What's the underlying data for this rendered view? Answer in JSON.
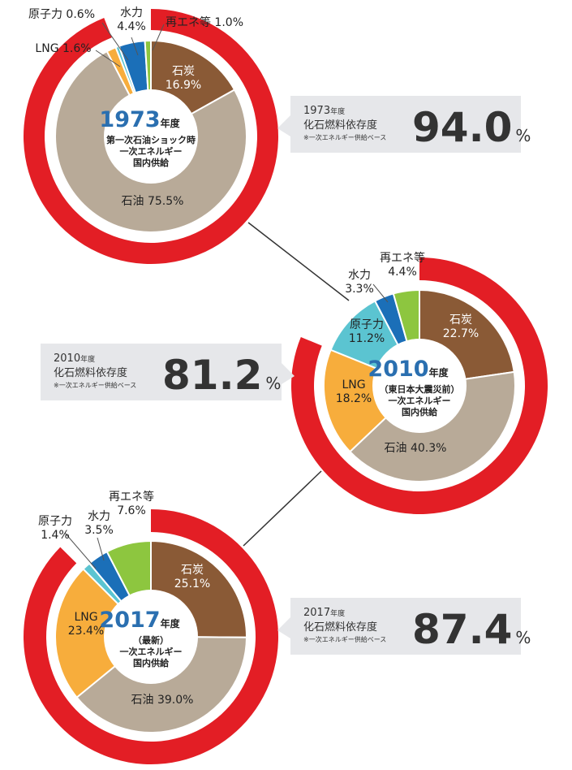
{
  "colors": {
    "ring": "#e31e25",
    "callout_bg": "#e6e7ea",
    "year_text": "#2a6fb0",
    "connector": "#333333",
    "categories": {
      "coal": "#8a5a36",
      "oil": "#b8aa98",
      "lng": "#f7ad3c",
      "nuclear": "#5bc4d1",
      "hydro": "#1b6fb8",
      "renewable": "#8dc63f"
    }
  },
  "charts": [
    {
      "year": "1973",
      "nendo": "年度",
      "center_lines": [
        "第一次石油ショック時",
        "一次エネルギー",
        "国内供給"
      ],
      "callout": {
        "year": "1973",
        "year_suffix": "年度",
        "label": "化石燃料依存度",
        "note": "※一次エネルギー供給ベース",
        "value": "94.0",
        "unit": "%"
      }
    },
    {
      "year": "2010",
      "nendo": "年度",
      "center_lines": [
        "（東日本大震災前）",
        "一次エネルギー",
        "国内供給"
      ],
      "callout": {
        "year": "2010",
        "year_suffix": "年度",
        "label": "化石燃料依存度",
        "note": "※一次エネルギー供給ベース",
        "value": "81.2",
        "unit": "%"
      }
    },
    {
      "year": "2017",
      "nendo": "年度",
      "center_lines": [
        "（最新）",
        "一次エネルギー",
        "国内供給"
      ],
      "callout": {
        "year": "2017",
        "year_suffix": "年度",
        "label": "化石燃料依存度",
        "note": "※一次エネルギー供給ベース",
        "value": "87.4",
        "unit": "%"
      }
    }
  ],
  "chart_data": [
    {
      "type": "pie",
      "title": "1973年度 第一次石油ショック時 一次エネルギー国内供給",
      "fossil_dependency_pct": 94.0,
      "slices": [
        {
          "name": "石炭",
          "value": 16.9,
          "label": "16.9%",
          "color_key": "coal"
        },
        {
          "name": "石油",
          "value": 75.5,
          "label": "75.5%",
          "color_key": "oil"
        },
        {
          "name": "LNG",
          "value": 1.6,
          "label": "1.6%",
          "color_key": "lng"
        },
        {
          "name": "原子力",
          "value": 0.6,
          "label": "0.6%",
          "color_key": "nuclear"
        },
        {
          "name": "水力",
          "value": 4.4,
          "label": "4.4%",
          "color_key": "hydro"
        },
        {
          "name": "再エネ等",
          "value": 1.0,
          "label": "1.0%",
          "color_key": "renewable"
        }
      ]
    },
    {
      "type": "pie",
      "title": "2010年度（東日本大震災前）一次エネルギー国内供給",
      "fossil_dependency_pct": 81.2,
      "slices": [
        {
          "name": "石炭",
          "value": 22.7,
          "label": "22.7%",
          "color_key": "coal"
        },
        {
          "name": "石油",
          "value": 40.3,
          "label": "40.3%",
          "color_key": "oil"
        },
        {
          "name": "LNG",
          "value": 18.2,
          "label": "18.2%",
          "color_key": "lng"
        },
        {
          "name": "原子力",
          "value": 11.2,
          "label": "11.2%",
          "color_key": "nuclear"
        },
        {
          "name": "水力",
          "value": 3.3,
          "label": "3.3%",
          "color_key": "hydro"
        },
        {
          "name": "再エネ等",
          "value": 4.4,
          "label": "4.4%",
          "color_key": "renewable"
        }
      ]
    },
    {
      "type": "pie",
      "title": "2017年度（最新）一次エネルギー国内供給",
      "fossil_dependency_pct": 87.4,
      "slices": [
        {
          "name": "石炭",
          "value": 25.1,
          "label": "25.1%",
          "color_key": "coal"
        },
        {
          "name": "石油",
          "value": 39.0,
          "label": "39.0%",
          "color_key": "oil"
        },
        {
          "name": "LNG",
          "value": 23.4,
          "label": "23.4%",
          "color_key": "lng"
        },
        {
          "name": "原子力",
          "value": 1.4,
          "label": "1.4%",
          "color_key": "nuclear"
        },
        {
          "name": "水力",
          "value": 3.5,
          "label": "3.5%",
          "color_key": "hydro"
        },
        {
          "name": "再エネ等",
          "value": 7.6,
          "label": "7.6%",
          "color_key": "renewable"
        }
      ]
    }
  ]
}
